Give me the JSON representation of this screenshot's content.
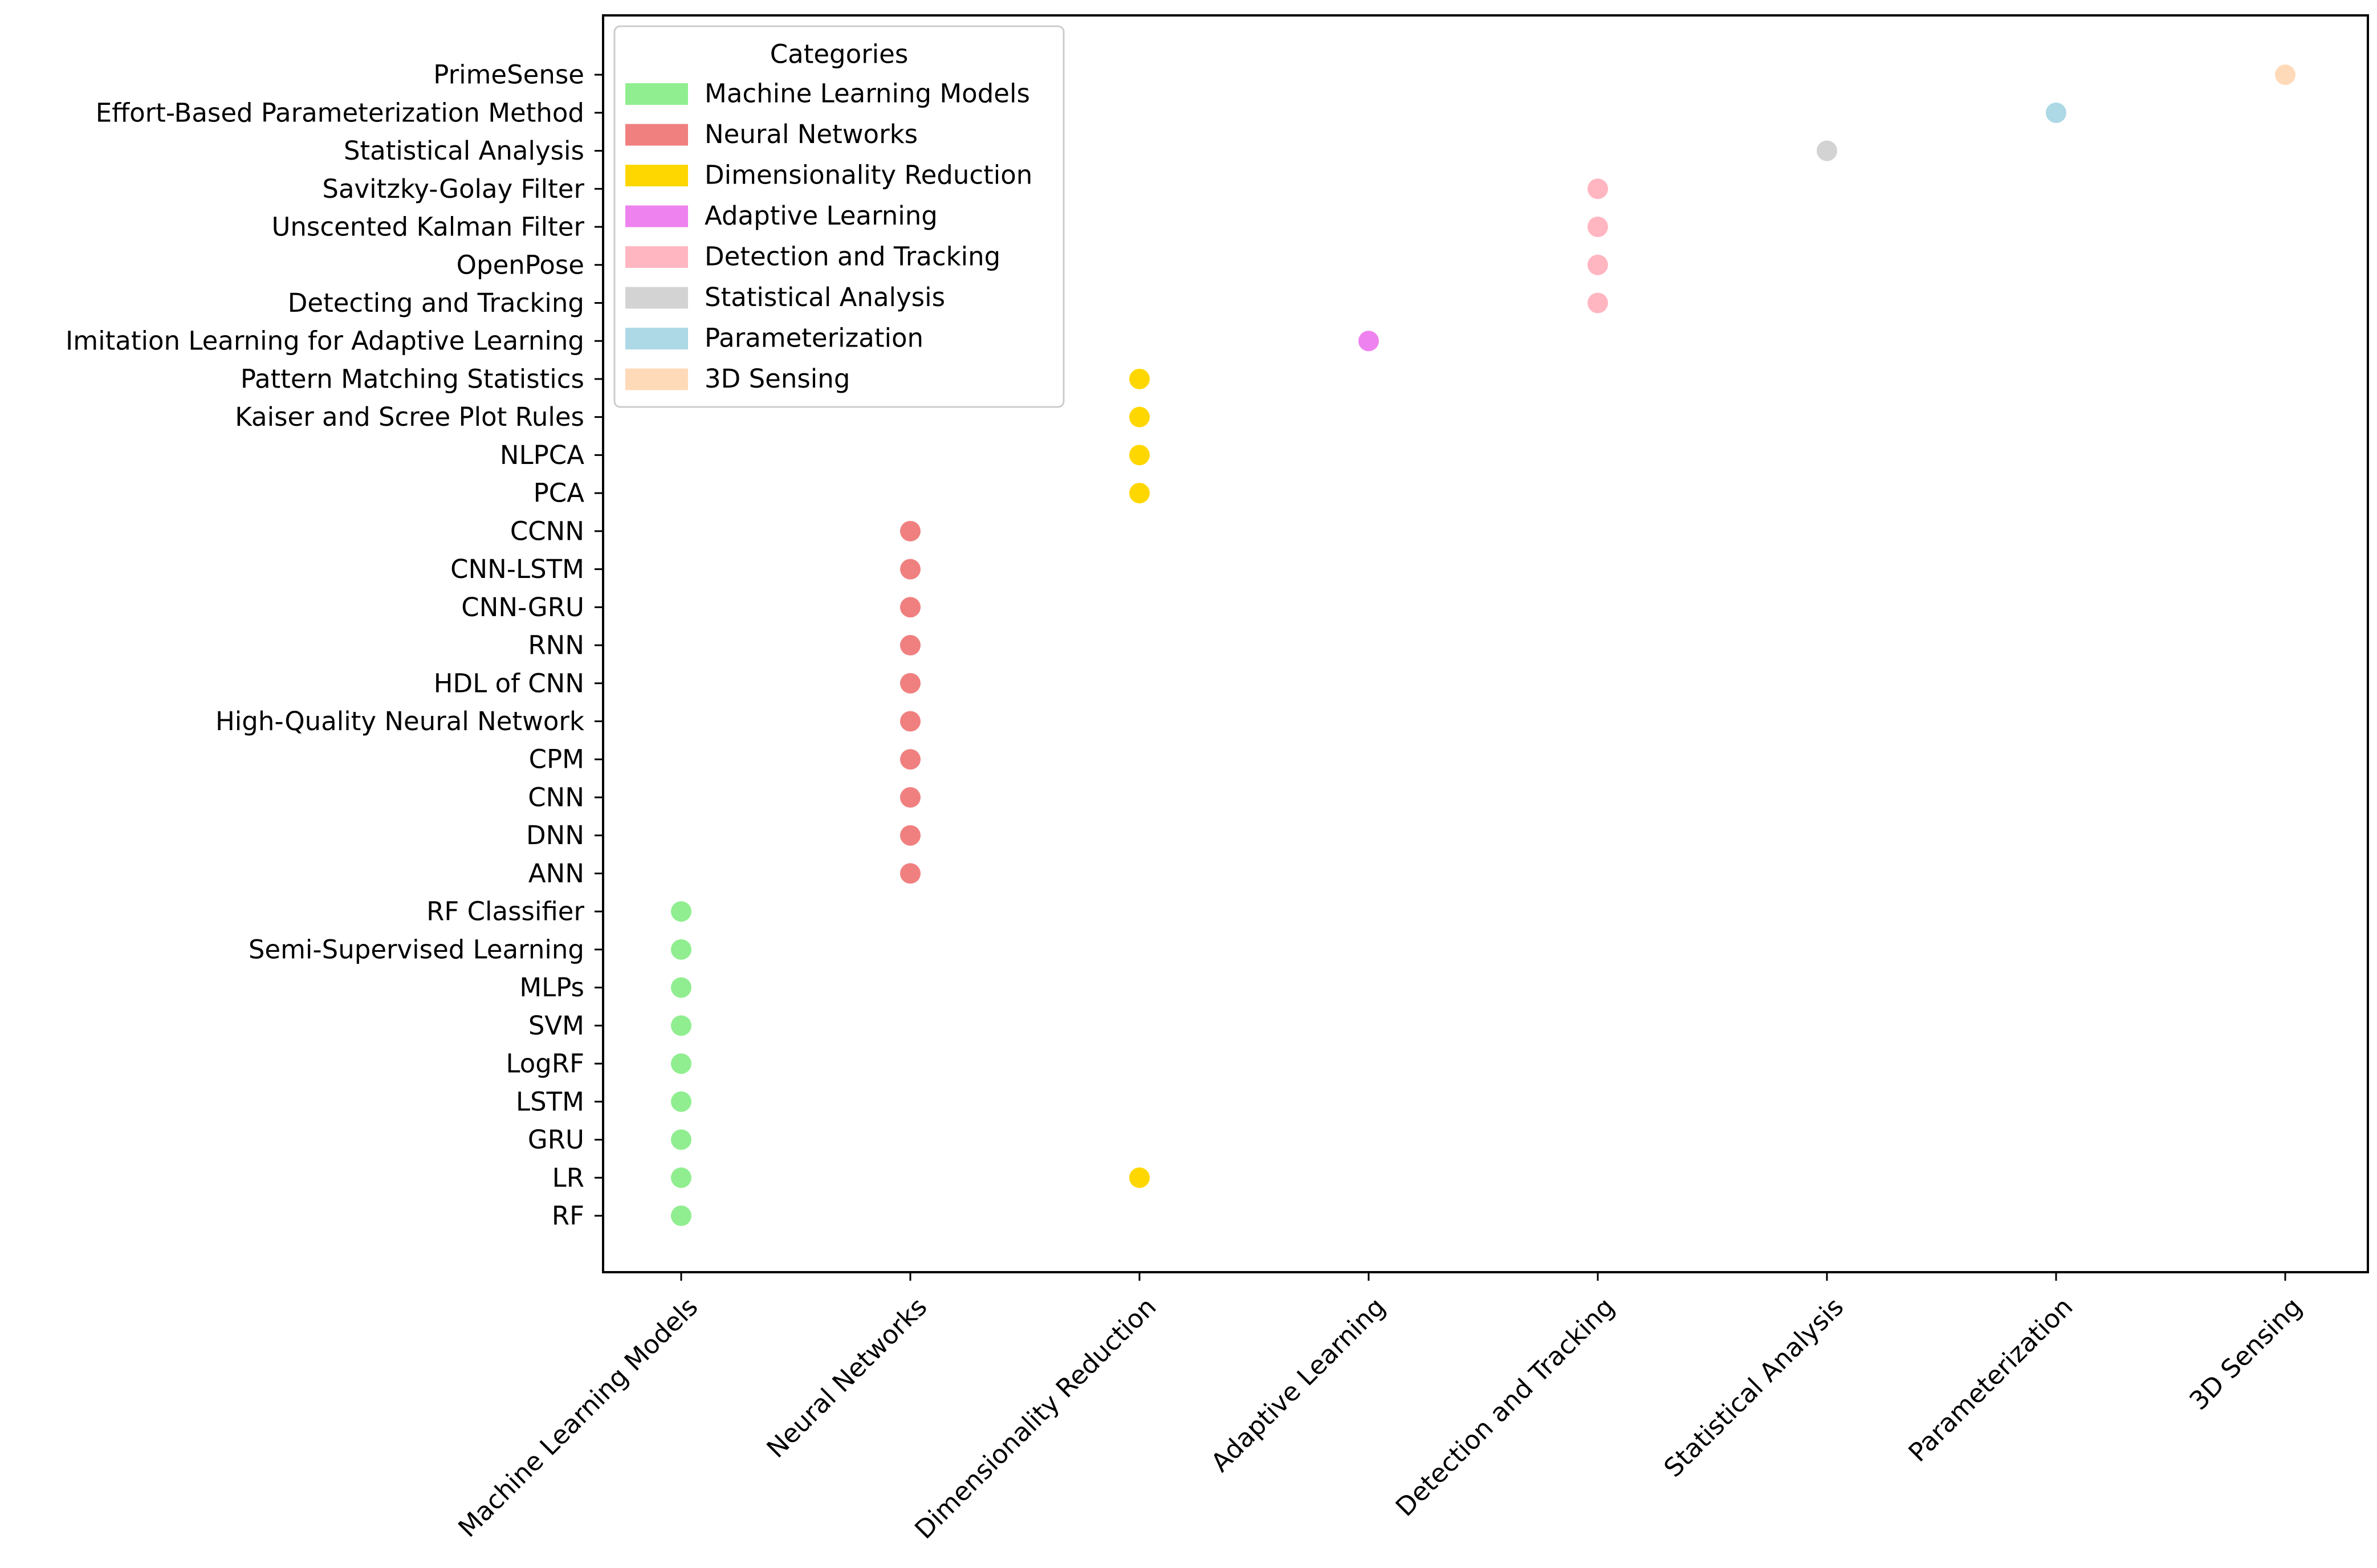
{
  "chart_data": {
    "type": "scatter",
    "title": "",
    "xlabel": "",
    "ylabel": "",
    "categories": [
      "Machine Learning Models",
      "Neural Networks",
      "Dimensionality Reduction",
      "Adaptive Learning",
      "Detection and Tracking",
      "Statistical Analysis",
      "Parameterization",
      "3D Sensing"
    ],
    "methods": [
      "RF",
      "LR",
      "GRU",
      "LSTM",
      "LogRF",
      "SVM",
      "MLPs",
      "Semi-Supervised Learning",
      "RF Classifier",
      "ANN",
      "DNN",
      "CNN",
      "CPM",
      "High-Quality Neural Network",
      "HDL of CNN",
      "RNN",
      "CNN-GRU",
      "CNN-LSTM",
      "CCNN",
      "PCA",
      "NLPCA",
      "Kaiser and Scree Plot Rules",
      "Pattern Matching Statistics",
      "Imitation Learning for Adaptive Learning",
      "Detecting and Tracking",
      "OpenPose",
      "Unscented Kalman Filter",
      "Savitzky-Golay Filter",
      "Statistical Analysis",
      "Effort-Based Parameterization Method",
      "PrimeSense"
    ],
    "points": [
      {
        "x": "Machine Learning Models",
        "y": "RF"
      },
      {
        "x": "Machine Learning Models",
        "y": "LR"
      },
      {
        "x": "Machine Learning Models",
        "y": "GRU"
      },
      {
        "x": "Machine Learning Models",
        "y": "LSTM"
      },
      {
        "x": "Machine Learning Models",
        "y": "LogRF"
      },
      {
        "x": "Machine Learning Models",
        "y": "SVM"
      },
      {
        "x": "Machine Learning Models",
        "y": "MLPs"
      },
      {
        "x": "Machine Learning Models",
        "y": "Semi-Supervised Learning"
      },
      {
        "x": "Machine Learning Models",
        "y": "RF Classifier"
      },
      {
        "x": "Neural Networks",
        "y": "ANN"
      },
      {
        "x": "Neural Networks",
        "y": "DNN"
      },
      {
        "x": "Neural Networks",
        "y": "CNN"
      },
      {
        "x": "Neural Networks",
        "y": "CPM"
      },
      {
        "x": "Neural Networks",
        "y": "High-Quality Neural Network"
      },
      {
        "x": "Neural Networks",
        "y": "HDL of CNN"
      },
      {
        "x": "Neural Networks",
        "y": "RNN"
      },
      {
        "x": "Neural Networks",
        "y": "CNN-GRU"
      },
      {
        "x": "Neural Networks",
        "y": "CNN-LSTM"
      },
      {
        "x": "Neural Networks",
        "y": "CCNN"
      },
      {
        "x": "Dimensionality Reduction",
        "y": "LR"
      },
      {
        "x": "Dimensionality Reduction",
        "y": "PCA"
      },
      {
        "x": "Dimensionality Reduction",
        "y": "NLPCA"
      },
      {
        "x": "Dimensionality Reduction",
        "y": "Kaiser and Scree Plot Rules"
      },
      {
        "x": "Dimensionality Reduction",
        "y": "Pattern Matching Statistics"
      },
      {
        "x": "Adaptive Learning",
        "y": "Imitation Learning for Adaptive Learning"
      },
      {
        "x": "Detection and Tracking",
        "y": "Detecting and Tracking"
      },
      {
        "x": "Detection and Tracking",
        "y": "OpenPose"
      },
      {
        "x": "Detection and Tracking",
        "y": "Unscented Kalman Filter"
      },
      {
        "x": "Detection and Tracking",
        "y": "Savitzky-Golay Filter"
      },
      {
        "x": "Statistical Analysis",
        "y": "Statistical Analysis"
      },
      {
        "x": "Parameterization",
        "y": "Effort-Based Parameterization Method"
      },
      {
        "x": "3D Sensing",
        "y": "PrimeSense"
      }
    ],
    "colors": {
      "Machine Learning Models": "#90ee90",
      "Neural Networks": "#f08080",
      "Dimensionality Reduction": "#ffd700",
      "Adaptive Learning": "#ee82ee",
      "Detection and Tracking": "#ffb6c1",
      "Statistical Analysis": "#d3d3d3",
      "Parameterization": "#add8e6",
      "3D Sensing": "#ffdab9"
    },
    "legend": {
      "title": "Categories",
      "placement": "upper-left",
      "entries": [
        "Machine Learning Models",
        "Neural Networks",
        "Dimensionality Reduction",
        "Adaptive Learning",
        "Detection and Tracking",
        "Statistical Analysis",
        "Parameterization",
        "3D Sensing"
      ]
    },
    "grid": false
  }
}
